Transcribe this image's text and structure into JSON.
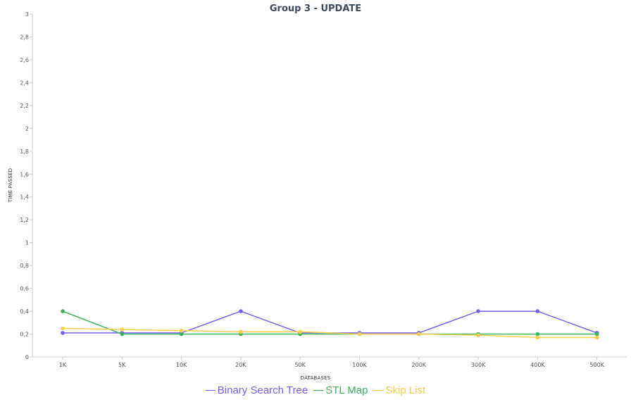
{
  "chart_data": {
    "type": "line",
    "title": "Group 3 - UPDATE",
    "xlabel": "DATABASES",
    "ylabel": "TIME PASSED",
    "categories": [
      "1K",
      "5K",
      "10K",
      "20K",
      "50K",
      "100K",
      "200K",
      "300K",
      "400K",
      "500K"
    ],
    "ylim": [
      0,
      3
    ],
    "yticks": [
      0,
      0.2,
      0.4,
      0.6,
      0.8,
      1,
      1.2,
      1.4,
      1.6,
      1.8,
      2,
      2.2,
      2.4,
      2.6,
      2.8,
      3
    ],
    "ytick_labels": [
      "0",
      "0,2",
      "0,4",
      "0,6",
      "0,8",
      "1",
      "1,2",
      "1,4",
      "1,6",
      "1,8",
      "2",
      "2,2",
      "2,4",
      "2,6",
      "2,8",
      "3"
    ],
    "grid": false,
    "legend_position": "bottom-center",
    "series": [
      {
        "name": "Binary Search Tree",
        "color": "#7b5cf5",
        "values": [
          0.21,
          0.21,
          0.21,
          0.4,
          0.21,
          0.21,
          0.21,
          0.4,
          0.4,
          0.21
        ]
      },
      {
        "name": "STL Map",
        "color": "#3cb35c",
        "values": [
          0.4,
          0.2,
          0.2,
          0.2,
          0.2,
          0.2,
          0.2,
          0.2,
          0.2,
          0.2
        ]
      },
      {
        "name": "Skip List",
        "color": "#f7cf4a",
        "values": [
          0.25,
          0.24,
          0.23,
          0.22,
          0.22,
          0.2,
          0.2,
          0.19,
          0.17,
          0.17
        ]
      }
    ]
  }
}
